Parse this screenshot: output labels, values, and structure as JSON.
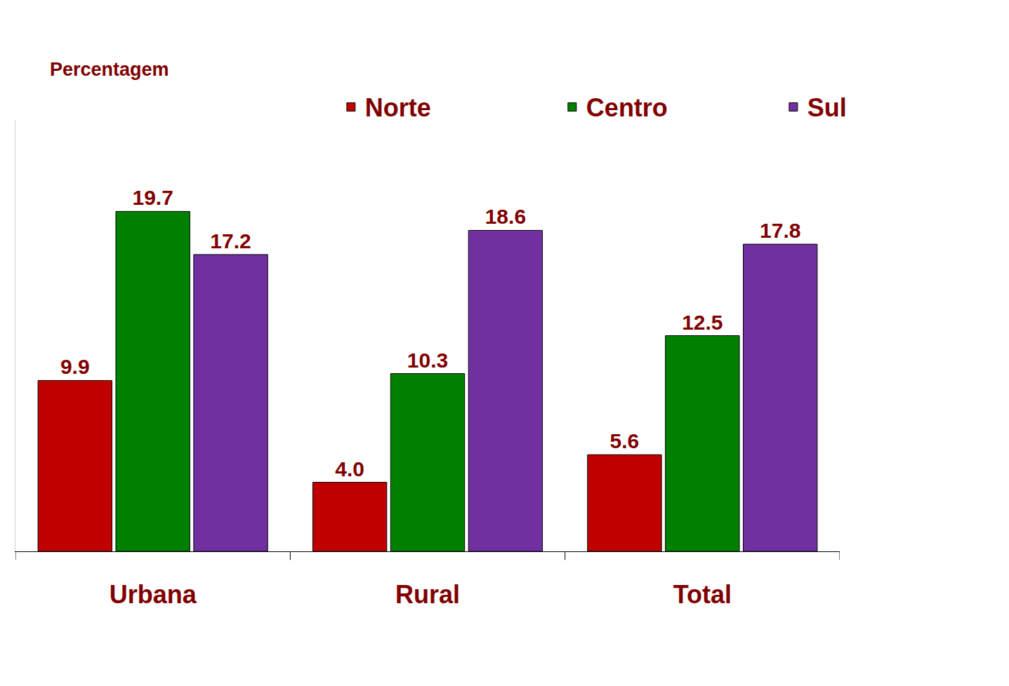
{
  "chart_data": {
    "type": "bar",
    "y_label": "Percentagem",
    "categories": [
      "Urbana",
      "Rural",
      "Total"
    ],
    "series": [
      {
        "name": "Norte",
        "color": "#c00000",
        "values": [
          9.9,
          4.0,
          5.6
        ],
        "value_labels": [
          "9.9",
          "4.0",
          "5.6"
        ]
      },
      {
        "name": "Centro",
        "color": "#008000",
        "values": [
          19.7,
          10.3,
          12.5
        ],
        "value_labels": [
          "19.7",
          "10.3",
          "12.5"
        ]
      },
      {
        "name": "Sul",
        "color": "#7030a0",
        "values": [
          17.2,
          18.6,
          17.8
        ],
        "value_labels": [
          "17.2",
          "18.6",
          "17.8"
        ]
      }
    ],
    "ylim": [
      0,
      25
    ],
    "yticks": [],
    "grid": false,
    "legend": "top",
    "data_labels": true,
    "tick_labels": "x"
  }
}
